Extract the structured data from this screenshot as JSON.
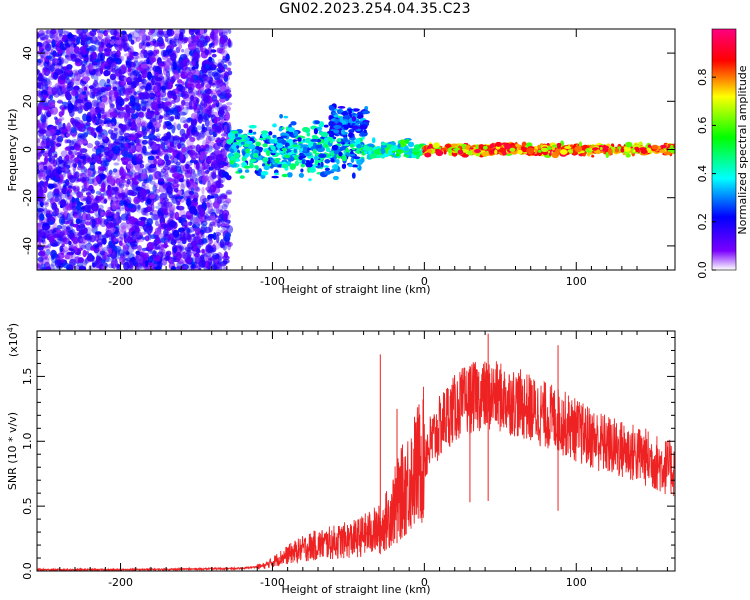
{
  "title": "GN02.2023.254.04.35.C23",
  "chart_data": [
    {
      "type": "heatmap",
      "xlabel": "Height of straight line (km)",
      "ylabel": "Frequency (Hz)",
      "xlim": [
        -255,
        165
      ],
      "ylim": [
        -50,
        50
      ],
      "x_ticks": [
        -200,
        -100,
        0,
        100
      ],
      "x_tick_labels": [
        "-200",
        "-100",
        "0",
        "100"
      ],
      "y_ticks": [
        -40,
        -20,
        0,
        20,
        40
      ],
      "y_tick_labels": [
        "-40",
        "-20",
        "0",
        "20",
        "40"
      ],
      "colorbar": {
        "label": "Normalized spectral amplitude",
        "range": [
          0.0,
          1.0
        ],
        "ticks": [
          0.0,
          0.2,
          0.4,
          0.6,
          0.8
        ],
        "tick_labels": [
          "0.0",
          "0.2",
          "0.4",
          "0.6",
          "0.8"
        ],
        "colormap": [
          "#ffffff",
          "#7a00ff",
          "#0000ff",
          "#00ffff",
          "#00ff00",
          "#ffff00",
          "#ff0000",
          "#ff0080"
        ]
      },
      "regions": [
        {
          "x_range": [
            -255,
            -128
          ],
          "freq_range": [
            -50,
            50
          ],
          "amplitude": [
            0.05,
            0.25
          ]
        },
        {
          "x_range": [
            -128,
            -40
          ],
          "freq_center": 0,
          "freq_spread": 10,
          "amplitude": [
            0.2,
            0.5
          ]
        },
        {
          "x_range": [
            -62,
            -38
          ],
          "freq_center": 12,
          "freq_spread": 6,
          "amplitude": [
            0.15,
            0.35
          ]
        },
        {
          "x_range": [
            -40,
            0
          ],
          "freq_center": 0,
          "freq_spread": 3,
          "amplitude": [
            0.3,
            0.6
          ]
        },
        {
          "x_range": [
            0,
            165
          ],
          "freq_center": 0,
          "freq_spread": 2,
          "amplitude": [
            0.6,
            0.95
          ]
        }
      ]
    },
    {
      "type": "line",
      "xlabel": "Height of straight line (km)",
      "ylabel": "SNR (10 * v/v)",
      "scale_label": "(x10",
      "scale_exp": "4",
      "scale_close": ")",
      "xlim": [
        -255,
        165
      ],
      "ylim": [
        0,
        1.85
      ],
      "x_ticks": [
        -200,
        -100,
        0,
        100
      ],
      "x_tick_labels": [
        "-200",
        "-100",
        "0",
        "100"
      ],
      "y_ticks": [
        0.0,
        0.5,
        1.0,
        1.5
      ],
      "y_tick_labels": [
        "0.0",
        "0.5",
        "1.0",
        "1.5"
      ],
      "series": [
        {
          "color": "#ee2222",
          "x": [
            -255,
            -200,
            -150,
            -120,
            -105,
            -95,
            -85,
            -75,
            -65,
            -55,
            -45,
            -35,
            -28,
            -22,
            -15,
            -5,
            5,
            15,
            25,
            35,
            45,
            55,
            65,
            75,
            85,
            95,
            105,
            115,
            125,
            135,
            145,
            155,
            165
          ],
          "values": [
            0.01,
            0.01,
            0.015,
            0.02,
            0.04,
            0.1,
            0.15,
            0.19,
            0.21,
            0.23,
            0.25,
            0.3,
            0.33,
            0.45,
            0.6,
            0.8,
            1.0,
            1.2,
            1.3,
            1.35,
            1.35,
            1.32,
            1.28,
            1.22,
            1.18,
            1.12,
            1.05,
            1.0,
            0.95,
            0.92,
            0.88,
            0.82,
            0.78
          ]
        }
      ],
      "peaks": [
        {
          "x": -29,
          "y": 1.67
        },
        {
          "x": 42,
          "y": 1.83
        },
        {
          "x": 88,
          "y": 1.74
        },
        {
          "x": -18,
          "y": 1.25
        },
        {
          "x": 30,
          "y": 1.58
        }
      ]
    }
  ]
}
